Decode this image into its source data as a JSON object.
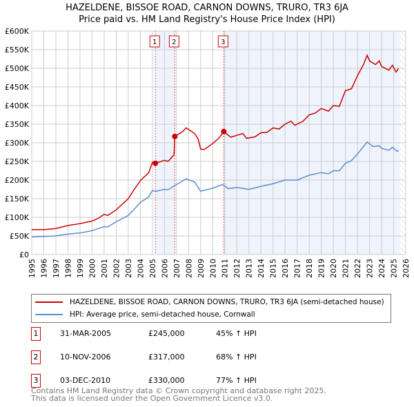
{
  "chart_data": {
    "type": "line",
    "title": "HAZELDENE, BISSOE ROAD, CARNON DOWNS, TRURO, TR3 6JA",
    "subtitle": "Price paid vs. HM Land Registry's House Price Index (HPI)",
    "xlim": [
      1995,
      2026
    ],
    "ylim": [
      0,
      600000
    ],
    "yticks": [
      {
        "v": 0,
        "l": "£0"
      },
      {
        "v": 50000,
        "l": "£50K"
      },
      {
        "v": 100000,
        "l": "£100K"
      },
      {
        "v": 150000,
        "l": "£150K"
      },
      {
        "v": 200000,
        "l": "£200K"
      },
      {
        "v": 250000,
        "l": "£250K"
      },
      {
        "v": 300000,
        "l": "£300K"
      },
      {
        "v": 350000,
        "l": "£350K"
      },
      {
        "v": 400000,
        "l": "£400K"
      },
      {
        "v": 450000,
        "l": "£450K"
      },
      {
        "v": 500000,
        "l": "£500K"
      },
      {
        "v": 550000,
        "l": "£550K"
      },
      {
        "v": 600000,
        "l": "£600K"
      }
    ],
    "xticks": [
      "1995",
      "1996",
      "1997",
      "1998",
      "1999",
      "2000",
      "2001",
      "2002",
      "2003",
      "2004",
      "2005",
      "2006",
      "2007",
      "2008",
      "2009",
      "2010",
      "2011",
      "2012",
      "2013",
      "2014",
      "2015",
      "2016",
      "2017",
      "2018",
      "2019",
      "2020",
      "2021",
      "2022",
      "2023",
      "2024",
      "2025",
      "2026"
    ],
    "grid": true,
    "series": [
      {
        "name": "HAZELDENE, BISSOE ROAD, CARNON DOWNS, TRURO, TR3 6JA (semi-detached house)",
        "color": "#cc0000",
        "x": [
          1995,
          1996,
          1997,
          1998,
          1999,
          2000,
          2000.5,
          2001,
          2001.3,
          2002,
          2003,
          2003.5,
          2004,
          2004.7,
          2005,
          2005.25,
          2006,
          2006.3,
          2006.8,
          2006.86,
          2007.5,
          2007.8,
          2008.5,
          2008.8,
          2009,
          2009.3,
          2010,
          2010.5,
          2010.92,
          2011.5,
          2012,
          2012.5,
          2012.8,
          2013.5,
          2014,
          2014.5,
          2015,
          2015.5,
          2016,
          2016.5,
          2016.8,
          2017.5,
          2018,
          2018.5,
          2019,
          2019.6,
          2020,
          2020.5,
          2021,
          2021.5,
          2022,
          2022.5,
          2022.8,
          2023,
          2023.5,
          2023.8,
          2024,
          2024.6,
          2024.9,
          2025.2,
          2025.4
        ],
        "y": [
          67000,
          67000,
          70000,
          78000,
          83000,
          90000,
          97000,
          108000,
          105000,
          120000,
          150000,
          175000,
          198000,
          220000,
          248000,
          245000,
          253000,
          250000,
          268000,
          317000,
          330000,
          340000,
          325000,
          310000,
          283000,
          282000,
          298000,
          312000,
          330000,
          315000,
          320000,
          325000,
          312000,
          316000,
          327000,
          328000,
          340000,
          337000,
          350000,
          358000,
          347000,
          358000,
          375000,
          380000,
          392000,
          385000,
          400000,
          398000,
          440000,
          445000,
          480000,
          510000,
          535000,
          520000,
          510000,
          520000,
          505000,
          495000,
          508000,
          490000,
          500000
        ]
      },
      {
        "name": "HPI: Average price, semi-detached house, Cornwall",
        "color": "#5b8bd0",
        "x": [
          1995,
          1997,
          1998,
          1999,
          2000,
          2001,
          2001.3,
          2002,
          2003,
          2003.5,
          2004,
          2004.7,
          2005,
          2005.3,
          2006,
          2006.3,
          2007,
          2007.8,
          2008.5,
          2009,
          2010,
          2010.8,
          2011.3,
          2012,
          2013,
          2014,
          2015,
          2016,
          2016.5,
          2017,
          2018,
          2019,
          2019.6,
          2020,
          2020.5,
          2021,
          2021.5,
          2022,
          2022.8,
          2023.3,
          2023.8,
          2024,
          2024.6,
          2024.9,
          2025.3,
          2025.4
        ],
        "y": [
          47000,
          50000,
          55000,
          58000,
          64000,
          75000,
          74000,
          88000,
          105000,
          122000,
          140000,
          155000,
          172000,
          170000,
          175000,
          174000,
          188000,
          203000,
          195000,
          170000,
          178000,
          188000,
          177000,
          180000,
          175000,
          183000,
          190000,
          200000,
          200000,
          200000,
          213000,
          220000,
          217000,
          225000,
          225000,
          245000,
          252000,
          270000,
          302000,
          290000,
          292000,
          285000,
          280000,
          288000,
          277000,
          280000
        ]
      }
    ],
    "sales": [
      {
        "n": "1",
        "x": 2005.25,
        "y": 245000,
        "date": "31-MAR-2005",
        "price": "£245,000",
        "hpi": "45% ↑ HPI"
      },
      {
        "n": "2",
        "x": 2006.86,
        "y": 317000,
        "date": "10-NOV-2006",
        "price": "£317,000",
        "hpi": "68% ↑ HPI"
      },
      {
        "n": "3",
        "x": 2010.92,
        "y": 330000,
        "date": "03-DEC-2010",
        "price": "£330,000",
        "hpi": "77% ↑ HPI"
      }
    ],
    "data_end": 2025.5,
    "legend_position": "below"
  },
  "footer": [
    "Contains HM Land Registry data © Crown copyright and database right 2025.",
    "This data is licensed under the Open Government Licence v3.0."
  ]
}
